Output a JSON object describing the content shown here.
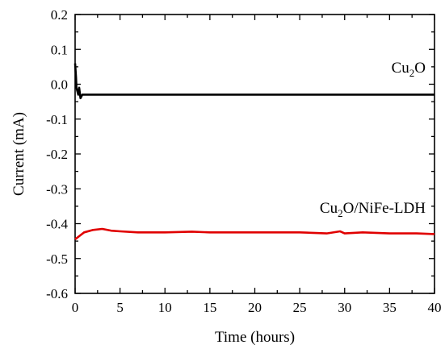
{
  "chart_data": {
    "type": "line",
    "xlabel": "Time (hours)",
    "ylabel": "Current (mA)",
    "xlim": [
      0,
      40
    ],
    "ylim": [
      -0.6,
      0.2
    ],
    "x_ticks": [
      "0",
      "5",
      "10",
      "15",
      "20",
      "25",
      "30",
      "35",
      "40"
    ],
    "y_ticks": [
      "0.2",
      "0.1",
      "0.0",
      "-0.1",
      "-0.2",
      "-0.3",
      "-0.4",
      "-0.5",
      "-0.6"
    ],
    "grid": false,
    "legend": "none",
    "series": [
      {
        "name": "Cu2O",
        "label_main": "Cu",
        "label_sub": "2",
        "label_rest": "O",
        "color": "#000000",
        "x": [
          0,
          0.1,
          0.15,
          0.25,
          0.35,
          0.45,
          0.6,
          0.8,
          1,
          2,
          5,
          10,
          15,
          20,
          25,
          30,
          35,
          40
        ],
        "y": [
          0.06,
          0.02,
          -0.01,
          -0.02,
          -0.03,
          -0.01,
          -0.04,
          -0.03,
          -0.03,
          -0.03,
          -0.03,
          -0.03,
          -0.03,
          -0.03,
          -0.03,
          -0.03,
          -0.03,
          -0.03
        ]
      },
      {
        "name": "Cu2O/NiFe-LDH",
        "label_main": "Cu",
        "label_sub": "2",
        "label_rest": "O/NiFe-LDH",
        "color": "#e00000",
        "x": [
          0,
          0.5,
          1,
          2,
          3,
          4,
          5,
          7,
          10,
          13,
          15,
          18,
          20,
          25,
          28,
          29.5,
          30,
          32,
          35,
          38,
          40
        ],
        "y": [
          -0.445,
          -0.435,
          -0.425,
          -0.418,
          -0.415,
          -0.42,
          -0.422,
          -0.425,
          -0.425,
          -0.423,
          -0.425,
          -0.425,
          -0.425,
          -0.425,
          -0.428,
          -0.422,
          -0.428,
          -0.425,
          -0.428,
          -0.428,
          -0.43
        ]
      }
    ]
  }
}
